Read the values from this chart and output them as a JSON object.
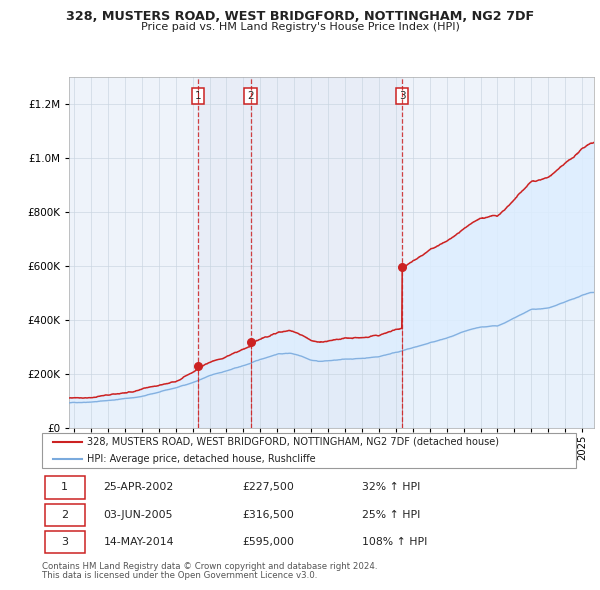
{
  "title": "328, MUSTERS ROAD, WEST BRIDGFORD, NOTTINGHAM, NG2 7DF",
  "subtitle": "Price paid vs. HM Land Registry's House Price Index (HPI)",
  "legend_line1": "328, MUSTERS ROAD, WEST BRIDGFORD, NOTTINGHAM, NG2 7DF (detached house)",
  "legend_line2": "HPI: Average price, detached house, Rushcliffe",
  "footnote1": "Contains HM Land Registry data © Crown copyright and database right 2024.",
  "footnote2": "This data is licensed under the Open Government Licence v3.0.",
  "row_data": [
    [
      "1",
      "25-APR-2002",
      "£227,500",
      "32% ↑ HPI"
    ],
    [
      "2",
      "03-JUN-2005",
      "£316,500",
      "25% ↑ HPI"
    ],
    [
      "3",
      "14-MAY-2014",
      "£595,000",
      "108% ↑ HPI"
    ]
  ],
  "transaction_dates_decimal": [
    2002.319,
    2005.42,
    2014.369
  ],
  "transaction_prices": [
    227500,
    316500,
    595000
  ],
  "hpi_line_color": "#7aaadd",
  "price_color": "#cc2222",
  "vline_color": "#cc2222",
  "shade_color": "#ddeeff",
  "chart_bg_color": "#eef3fa",
  "grid_color": "#c8d4e0",
  "ylim": [
    0,
    1300000
  ],
  "xlim_start": 1994.7,
  "xlim_end": 2025.7,
  "hpi_waypoints_x": [
    1994.7,
    1995.5,
    1997,
    1999,
    2001,
    2002,
    2003,
    2004,
    2005,
    2006,
    2007,
    2007.8,
    2008.5,
    2009,
    2009.5,
    2010,
    2011,
    2012,
    2013,
    2014,
    2015,
    2016,
    2017,
    2018,
    2019,
    2020,
    2021,
    2022,
    2023,
    2024,
    2025.5
  ],
  "hpi_waypoints_y": [
    92000,
    95000,
    103000,
    118000,
    148000,
    168000,
    192000,
    210000,
    228000,
    250000,
    272000,
    275000,
    265000,
    252000,
    248000,
    250000,
    254000,
    258000,
    265000,
    282000,
    298000,
    315000,
    332000,
    352000,
    368000,
    372000,
    400000,
    430000,
    435000,
    455000,
    490000
  ],
  "price_waypoints_x_pre": [
    1994.7,
    1995.5,
    1997,
    1999,
    2001,
    2002.319
  ],
  "price_waypoints_y_pre": [
    110000,
    114000,
    123000,
    142000,
    175000,
    227500
  ],
  "noise_seed_hpi": 42,
  "noise_seed_price": 77
}
